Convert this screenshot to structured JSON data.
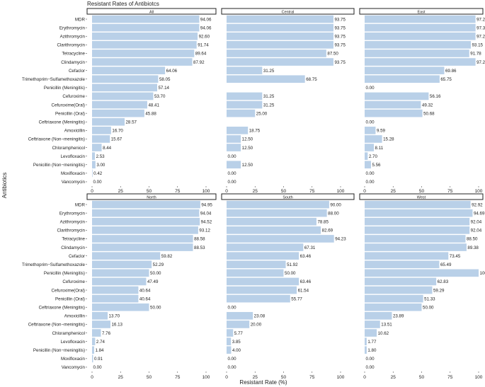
{
  "chart_data": {
    "type": "bar",
    "orientation": "horizontal",
    "title": "Resistant Rates of Antibiotcs",
    "xlabel": "Resistant Rate (%)",
    "ylabel": "Antibiotics",
    "xlim": [
      0,
      100
    ],
    "xticks": [
      "0",
      "25",
      "50",
      "75",
      "100"
    ],
    "bar_color": "#b9d0e8",
    "categories": [
      "MDR",
      "Erythromycin",
      "Azithromycin",
      "Clarithromycin",
      "Tetracycline",
      "Clindamycin",
      "Cefaclor",
      "Trimethoprim−Sulfamethoxazole",
      "Penicillin (Meningitis)",
      "Cefuroxime",
      "Cefuroxime(Oral)",
      "Penicillin (Oral)",
      "Ceftriaxone (Meningitis)",
      "Amoxicillin",
      "Ceftriaxone (Non−meningitis)",
      "Chloramphenicol",
      "Levofloxacin",
      "Penicillin (Non−meningitis)",
      "Moxifloxacin",
      "Vancomycin"
    ],
    "panels": [
      {
        "name": "All",
        "values": [
          94.06,
          94.06,
          92.6,
          91.74,
          89.64,
          87.92,
          64.06,
          58.05,
          57.14,
          53.7,
          48.41,
          45.88,
          28.57,
          16.7,
          15.67,
          8.44,
          2.53,
          3.0,
          0.42,
          0.0
        ],
        "labels": [
          "94.06",
          "94.06",
          "92.60",
          "91.74",
          "89.64",
          "87.92",
          "64.06",
          "58.05",
          "57.14",
          "53.70",
          "48.41",
          "45.88",
          "28.57",
          "16.70",
          "15.67",
          "8.44",
          "2.53",
          "3.00",
          "0.42",
          "0.00"
        ]
      },
      {
        "name": "Central",
        "values": [
          93.75,
          93.75,
          93.75,
          93.75,
          87.5,
          93.75,
          31.25,
          68.75,
          null,
          31.25,
          31.25,
          25.0,
          null,
          18.75,
          12.5,
          12.5,
          0.0,
          12.5,
          0.0,
          0.0
        ],
        "labels": [
          "93.75",
          "93.75",
          "93.75",
          "93.75",
          "87.50",
          "93.75",
          "31.25",
          "68.75",
          null,
          "31.25",
          "31.25",
          "25.00",
          null,
          "18.75",
          "12.50",
          "12.50",
          "0.00",
          "12.50",
          "0.00",
          "0.00"
        ]
      },
      {
        "name": "East",
        "values": [
          97.26,
          97.3,
          97.26,
          93.15,
          91.78,
          97.26,
          69.86,
          65.75,
          0.0,
          56.16,
          49.32,
          50.68,
          0.0,
          9.59,
          15.28,
          8.11,
          2.7,
          5.56,
          0.0,
          0.0
        ],
        "labels": [
          "97.26",
          "97.30",
          "97.26",
          "93.15",
          "91.78",
          "97.26",
          "69.86",
          "65.75",
          "0.00",
          "56.16",
          "49.32",
          "50.68",
          "0.00",
          "9.59",
          "15.28",
          "8.11",
          "2.70",
          "5.56",
          "0.00",
          "0.00"
        ]
      },
      {
        "name": "North",
        "values": [
          94.95,
          94.04,
          94.52,
          93.12,
          88.58,
          88.53,
          59.82,
          52.29,
          50.0,
          47.49,
          40.64,
          40.64,
          50.0,
          13.7,
          16.13,
          7.76,
          2.74,
          1.84,
          0.91,
          0.0
        ],
        "labels": [
          "94.95",
          "94.04",
          "94.52",
          "93.12",
          "88.58",
          "88.53",
          "59.82",
          "52.29",
          "50.00",
          "47.49",
          "40.64",
          "40.64",
          "50.00",
          "13.70",
          "16.13",
          "7.76",
          "2.74",
          "1.84",
          "0.91",
          "0.00"
        ]
      },
      {
        "name": "South",
        "values": [
          90.0,
          88.0,
          78.85,
          82.69,
          94.23,
          67.31,
          63.46,
          51.92,
          50.0,
          63.46,
          61.54,
          55.77,
          0.0,
          23.08,
          20.0,
          5.77,
          3.85,
          4.0,
          0.0,
          0.0
        ],
        "labels": [
          "90.00",
          "88.00",
          "78.85",
          "82.69",
          "94.23",
          "67.31",
          "63.46",
          "51.92",
          "50.00",
          "63.46",
          "61.54",
          "55.77",
          "0.00",
          "23.08",
          "20.00",
          "5.77",
          "3.85",
          "4.00",
          "0.00",
          "0.00"
        ]
      },
      {
        "name": "West",
        "values": [
          92.92,
          94.69,
          92.04,
          92.04,
          88.5,
          89.38,
          73.45,
          65.49,
          100.0,
          62.83,
          59.29,
          51.33,
          50.0,
          23.89,
          13.51,
          10.62,
          1.77,
          1.8,
          0.0,
          0.0
        ],
        "labels": [
          "92.92",
          "94.69",
          "92.04",
          "92.04",
          "88.50",
          "89.38",
          "73.45",
          "65.49",
          "100.0",
          "62.83",
          "59.29",
          "51.33",
          "50.00",
          "23.89",
          "13.51",
          "10.62",
          "1.77",
          "1.80",
          "0.00",
          "0.00"
        ]
      }
    ]
  }
}
